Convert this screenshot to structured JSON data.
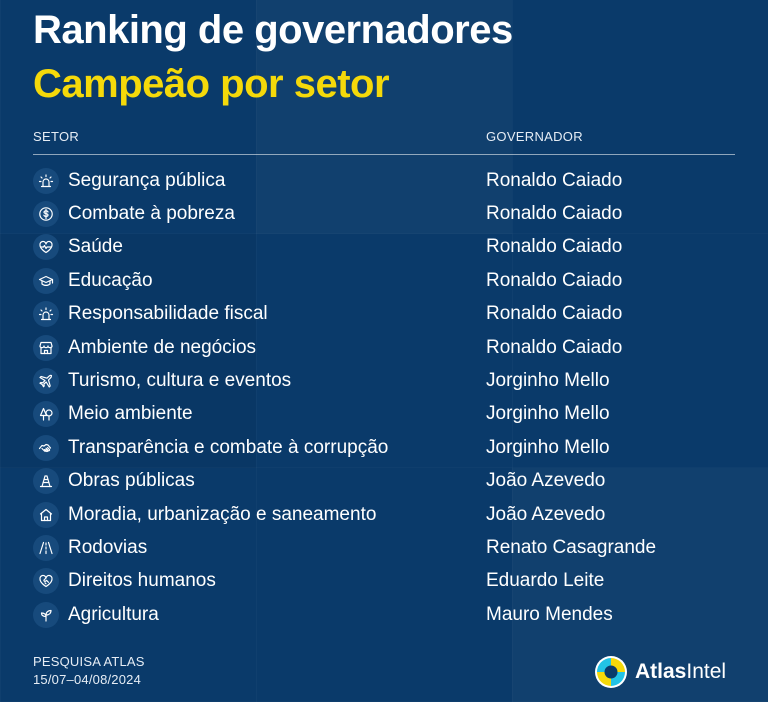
{
  "header": {
    "title": "Ranking de governadores",
    "subtitle": "Campeão por setor"
  },
  "columns": {
    "setor": "SETOR",
    "governador": "GOVERNADOR"
  },
  "rows": [
    {
      "setor": "Segurança pública",
      "governador": "Ronaldo Caiado",
      "icon": "siren-icon"
    },
    {
      "setor": "Combate à pobreza",
      "governador": "Ronaldo Caiado",
      "icon": "dollar-coin-icon"
    },
    {
      "setor": "Saúde",
      "governador": "Ronaldo Caiado",
      "icon": "heart-pulse-icon"
    },
    {
      "setor": "Educação",
      "governador": "Ronaldo Caiado",
      "icon": "graduation-cap-icon"
    },
    {
      "setor": "Responsabilidade fiscal",
      "governador": "Ronaldo Caiado",
      "icon": "siren-icon"
    },
    {
      "setor": "Ambiente de negócios",
      "governador": "Ronaldo Caiado",
      "icon": "store-icon"
    },
    {
      "setor": "Turismo, cultura e eventos",
      "governador": "Jorginho Mello",
      "icon": "airplane-icon"
    },
    {
      "setor": "Meio ambiente",
      "governador": "Jorginho Mello",
      "icon": "trees-icon"
    },
    {
      "setor": "Transparência e combate à corrupção",
      "governador": "Jorginho Mello",
      "icon": "handshake-icon"
    },
    {
      "setor": "Obras públicas",
      "governador": "João Azevedo",
      "icon": "traffic-cone-icon"
    },
    {
      "setor": "Moradia, urbanização e saneamento",
      "governador": "João Azevedo",
      "icon": "house-icon"
    },
    {
      "setor": "Rodovias",
      "governador": "Renato Casagrande",
      "icon": "road-icon"
    },
    {
      "setor": "Direitos humanos",
      "governador": "Eduardo Leite",
      "icon": "heart-handshake-icon"
    },
    {
      "setor": "Agricultura",
      "governador": "Mauro Mendes",
      "icon": "sprout-icon"
    }
  ],
  "footer": {
    "source_line1": "PESQUISA ATLAS",
    "source_line2": "15/07–04/08/2024",
    "brand_bold": "Atlas",
    "brand_rest": "Intel"
  },
  "colors": {
    "background": "#0a3a6a",
    "accent_yellow": "#f5d90a",
    "icon_bg": "#174a7c"
  }
}
